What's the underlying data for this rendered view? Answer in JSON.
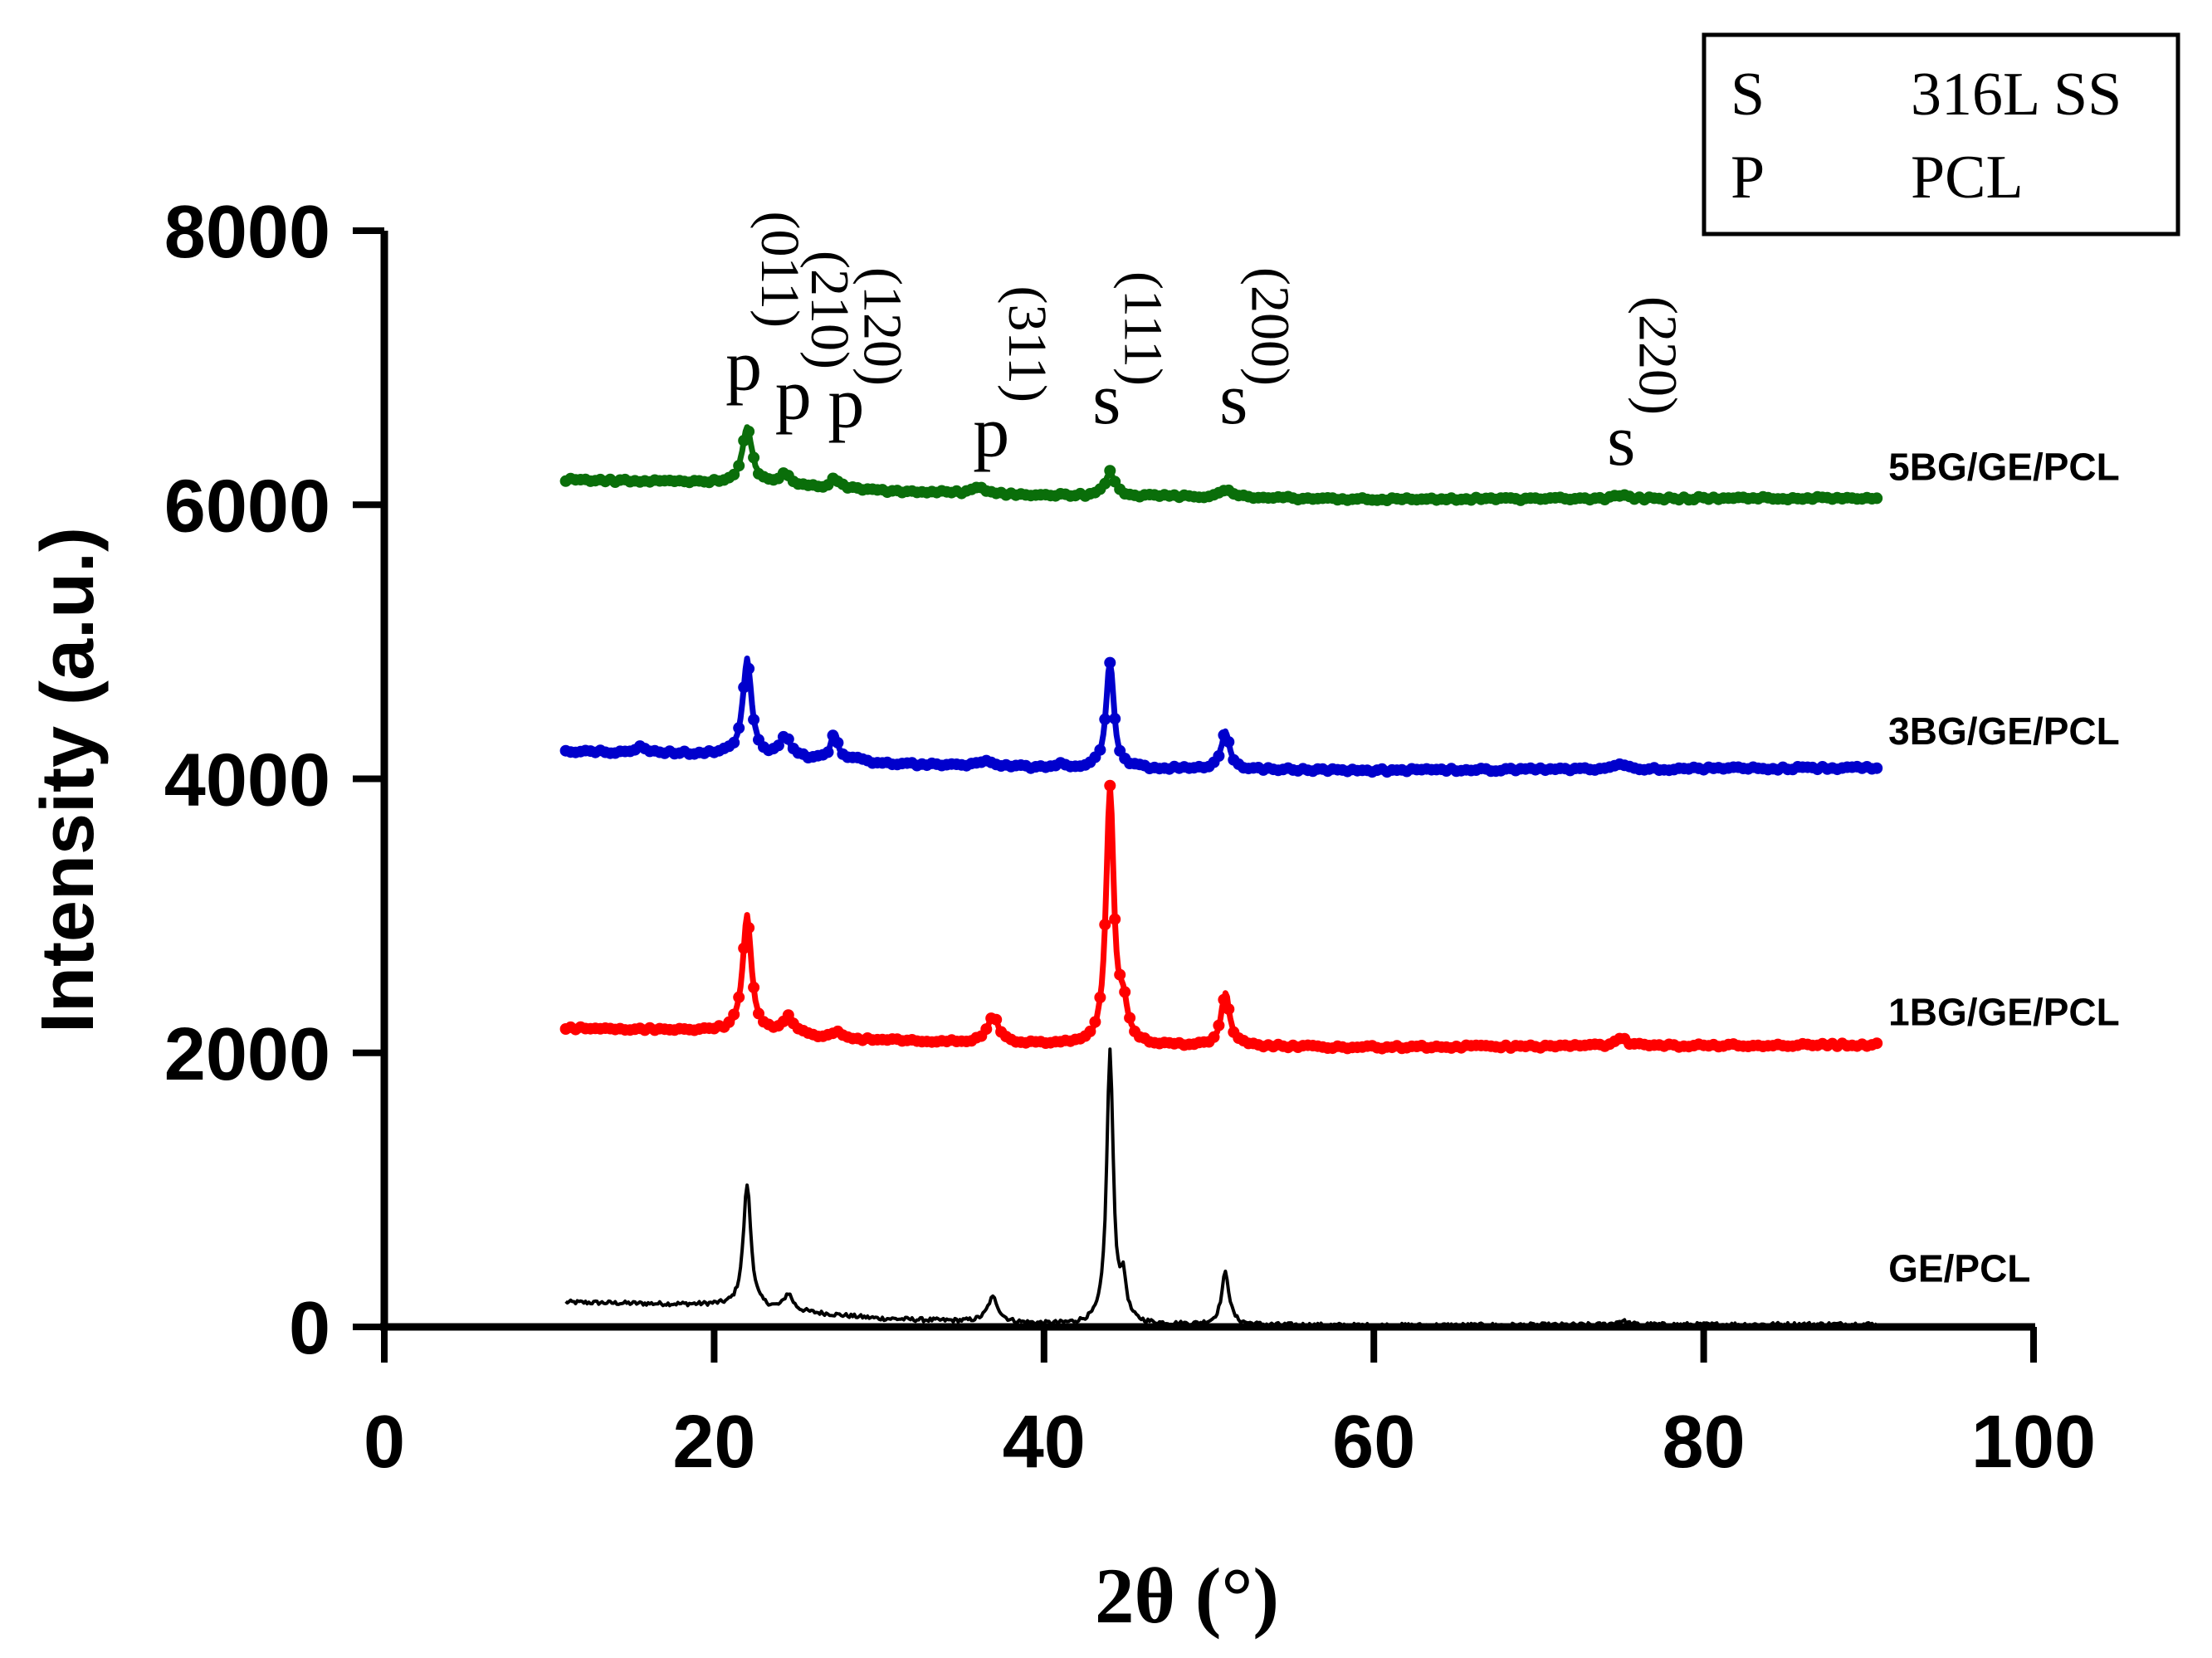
{
  "chart_data": {
    "type": "line",
    "title": "",
    "xlabel": "2θ (°)",
    "ylabel": "Intensity (a.u.)",
    "xlim": [
      0,
      100
    ],
    "ylim": [
      0,
      8000
    ],
    "xticks": [
      "0",
      "20",
      "40",
      "60",
      "80",
      "100"
    ],
    "yticks": [
      "0",
      "2000",
      "4000",
      "6000",
      "8000"
    ],
    "grid": false,
    "x_range": [
      11,
      90.5
    ],
    "series": [
      {
        "name": "GE/PCL",
        "color": "#000000",
        "marker": "none",
        "baseline": [
          [
            11,
            180
          ],
          [
            20,
            160
          ],
          [
            30,
            60
          ],
          [
            40,
            20
          ],
          [
            60,
            10
          ],
          [
            90.5,
            20
          ]
        ],
        "peaks": [
          [
            22.0,
            900,
            0.35
          ],
          [
            24.5,
            120,
            0.4
          ],
          [
            36.9,
            180,
            0.5
          ],
          [
            44.0,
            1980,
            0.3
          ],
          [
            44.8,
            280,
            0.3
          ],
          [
            51.0,
            380,
            0.35
          ],
          [
            75.0,
            30,
            0.5
          ]
        ]
      },
      {
        "name": "1BG/GE/PCL",
        "color": "#ff0000",
        "marker": "dot",
        "baseline": [
          [
            11,
            2180
          ],
          [
            20,
            2160
          ],
          [
            30,
            2090
          ],
          [
            40,
            2060
          ],
          [
            60,
            2040
          ],
          [
            90.5,
            2060
          ]
        ],
        "peaks": [
          [
            22.0,
            850,
            0.4
          ],
          [
            24.5,
            130,
            0.5
          ],
          [
            27.5,
            40,
            0.4
          ],
          [
            36.9,
            200,
            0.5
          ],
          [
            44.0,
            1850,
            0.35
          ],
          [
            44.8,
            250,
            0.4
          ],
          [
            51.0,
            380,
            0.4
          ],
          [
            75.0,
            50,
            0.6
          ]
        ]
      },
      {
        "name": "3BG/GE/PCL",
        "color": "#0000cc",
        "marker": "dot",
        "baseline": [
          [
            11,
            4200
          ],
          [
            20,
            4180
          ],
          [
            30,
            4110
          ],
          [
            40,
            4080
          ],
          [
            60,
            4060
          ],
          [
            90.5,
            4080
          ]
        ],
        "peaks": [
          [
            15.5,
            40,
            0.5
          ],
          [
            22.0,
            700,
            0.4
          ],
          [
            24.3,
            150,
            0.5
          ],
          [
            27.3,
            200,
            0.35
          ],
          [
            28.9,
            30,
            0.5
          ],
          [
            36.5,
            40,
            0.6
          ],
          [
            41.0,
            30,
            0.5
          ],
          [
            44.0,
            780,
            0.35
          ],
          [
            51.0,
            270,
            0.4
          ],
          [
            75.0,
            40,
            0.6
          ]
        ]
      },
      {
        "name": "5BG/GE/PCL",
        "color": "#0a6e0a",
        "marker": "dot",
        "baseline": [
          [
            11,
            6180
          ],
          [
            20,
            6160
          ],
          [
            30,
            6100
          ],
          [
            40,
            6070
          ],
          [
            60,
            6040
          ],
          [
            90.5,
            6050
          ]
        ],
        "peaks": [
          [
            22.0,
            420,
            0.45
          ],
          [
            24.3,
            80,
            0.5
          ],
          [
            27.3,
            80,
            0.4
          ],
          [
            36.0,
            40,
            0.6
          ],
          [
            44.0,
            180,
            0.4
          ],
          [
            51.0,
            60,
            0.5
          ],
          [
            75.0,
            20,
            0.6
          ]
        ]
      }
    ],
    "series_labels": [
      {
        "text": "5BG/GE/PCL",
        "x": 91.2,
        "y": 6180
      },
      {
        "text": "3BG/GE/PCL",
        "x": 91.2,
        "y": 4250
      },
      {
        "text": "1BG/GE/PCL",
        "x": 91.2,
        "y": 2200
      },
      {
        "text": "GE/PCL",
        "x": 91.2,
        "y": 330
      }
    ],
    "peak_annotations": [
      {
        "letter": "p",
        "index": "(011)",
        "x": 21.8
      },
      {
        "letter": "p",
        "index": "(210)",
        "x": 24.8
      },
      {
        "letter": "p",
        "index": "(120)",
        "x": 28.0
      },
      {
        "letter": "p",
        "index": "(311)",
        "x": 36.8
      },
      {
        "letter": "s",
        "index": "(111)",
        "x": 43.8
      },
      {
        "letter": "s",
        "index": "(200)",
        "x": 51.5
      },
      {
        "letter": "s",
        "index": "(220)",
        "x": 75.0
      }
    ],
    "legend": {
      "position": "top-right",
      "entries": [
        {
          "symbol": "S",
          "label": "316L SS"
        },
        {
          "symbol": "P",
          "label": "PCL"
        }
      ]
    }
  }
}
